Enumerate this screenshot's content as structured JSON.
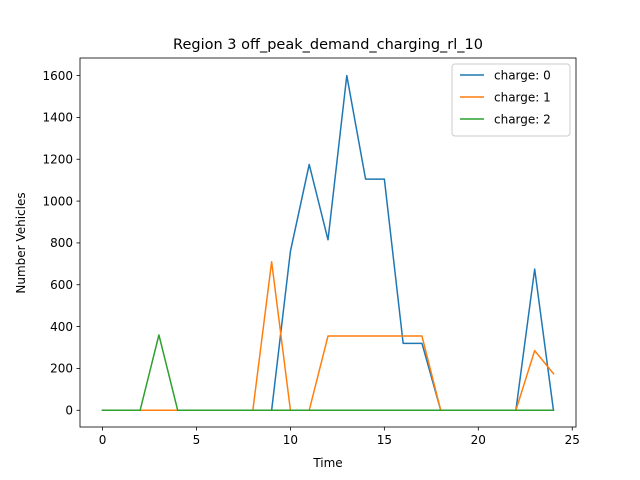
{
  "chart_data": {
    "type": "line",
    "title": "Region 3 off_peak_demand_charging_rl_10",
    "xlabel": "Time",
    "ylabel": "Number Vehicles",
    "xlim": [
      -1.2,
      25.2
    ],
    "ylim": [
      -80,
      1684
    ],
    "xticks": [
      0,
      5,
      10,
      15,
      20,
      25
    ],
    "yticks": [
      0,
      200,
      400,
      600,
      800,
      1000,
      1200,
      1400,
      1600
    ],
    "grid": false,
    "legend_position": "upper right",
    "x": [
      0,
      1,
      2,
      3,
      4,
      5,
      6,
      7,
      8,
      9,
      10,
      11,
      12,
      13,
      14,
      15,
      16,
      17,
      18,
      19,
      20,
      21,
      22,
      23,
      24
    ],
    "series": [
      {
        "name": "charge: 0",
        "color": "#1f77b4",
        "values": [
          0,
          0,
          0,
          0,
          0,
          0,
          0,
          0,
          0,
          0,
          760,
          1175,
          815,
          1600,
          1105,
          1105,
          320,
          320,
          0,
          0,
          0,
          0,
          0,
          675,
          0
        ]
      },
      {
        "name": "charge: 1",
        "color": "#ff7f0e",
        "values": [
          0,
          0,
          0,
          0,
          0,
          0,
          0,
          0,
          0,
          710,
          0,
          0,
          355,
          355,
          355,
          355,
          355,
          355,
          0,
          0,
          0,
          0,
          0,
          285,
          175
        ]
      },
      {
        "name": "charge: 2",
        "color": "#2ca02c",
        "values": [
          0,
          0,
          0,
          360,
          0,
          0,
          0,
          0,
          0,
          0,
          0,
          0,
          0,
          0,
          0,
          0,
          0,
          0,
          0,
          0,
          0,
          0,
          0,
          0,
          0
        ]
      }
    ]
  }
}
